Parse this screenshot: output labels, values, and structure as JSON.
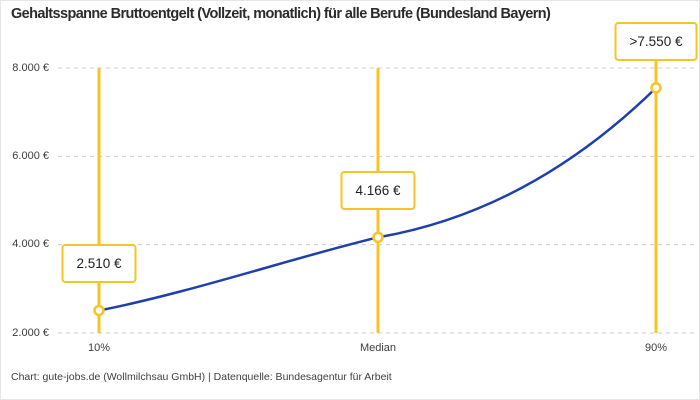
{
  "title": "Gehaltsspanne Bruttoentgelt (Vollzeit, monatlich) für alle Berufe (Bundesland Bayern)",
  "footer": "Chart: gute-jobs.de (Wollmilchsau GmbH) | Datenquelle: Bundesagentur für Arbeit",
  "colors": {
    "accent_yellow": "#F7C325",
    "line_blue": "#1E3FAE",
    "grid_gray": "#CCCCCC",
    "title_text": "#2B2B2B",
    "axis_text": "#3C3C3C"
  },
  "chart_data": {
    "type": "line",
    "title": "Gehaltsspanne Bruttoentgelt (Vollzeit, monatlich) für alle Berufe (Bundesland Bayern)",
    "categories": [
      "10%",
      "Median",
      "90%"
    ],
    "values": [
      2510,
      4166,
      7550
    ],
    "value_labels": [
      "2.510 €",
      "4.166 €",
      ">7.550 €"
    ],
    "ytick_values": [
      2000,
      4000,
      6000,
      8000
    ],
    "ytick_labels": [
      "2.000 €",
      "4.000 €",
      "6.000 €",
      "8.000 €"
    ],
    "ylim": [
      2000,
      8000
    ],
    "xlabel": "",
    "ylabel": "",
    "grid": "horizontal-dashed",
    "legend_position": "none",
    "source": "Chart: gute-jobs.de (Wollmilchsau GmbH) | Datenquelle: Bundesagentur für Arbeit"
  }
}
